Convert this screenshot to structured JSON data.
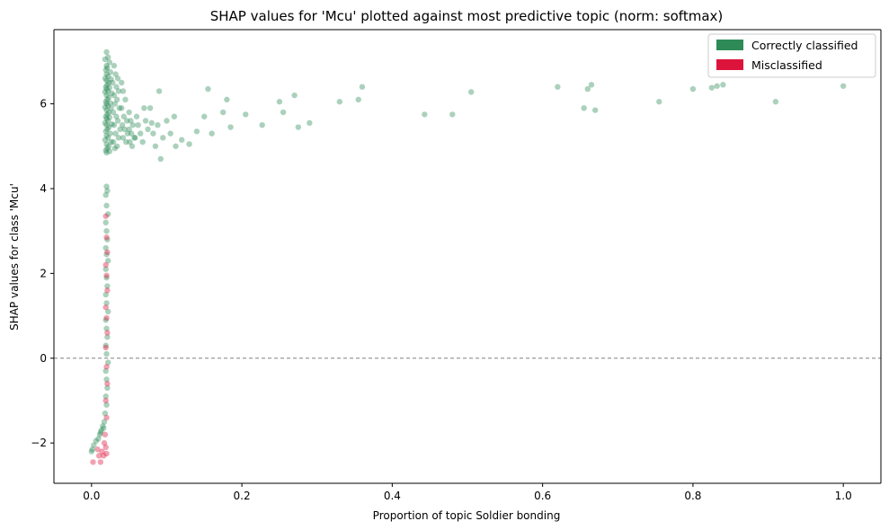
{
  "chart_data": {
    "type": "scatter",
    "title": "SHAP values for 'Mcu' plotted against most predictive topic (norm: softmax)",
    "xlabel": "Proportion of topic Soldier bonding",
    "ylabel": "SHAP values for class 'Mcu'",
    "xlim": [
      -0.05,
      1.05
    ],
    "ylim": [
      -2.95,
      7.75
    ],
    "xticks": [
      0.0,
      0.2,
      0.4,
      0.6,
      0.8,
      1.0
    ],
    "xtick_labels": [
      "0.0",
      "0.2",
      "0.4",
      "0.6",
      "0.8",
      "1.0"
    ],
    "yticks": [
      -2,
      0,
      2,
      4,
      6
    ],
    "ytick_labels": [
      "−2",
      "0",
      "2",
      "4",
      "6"
    ],
    "reference_line": {
      "y": 0,
      "style": "dashed",
      "color": "#808080"
    },
    "grid": false,
    "legend": {
      "position": "top-right"
    },
    "series": [
      {
        "name": "Correctly classified",
        "color": "#2e8b57",
        "points": [
          [
            0.02,
            7.22
          ],
          [
            0.022,
            7.1
          ],
          [
            0.018,
            7.05
          ],
          [
            0.024,
            6.98
          ],
          [
            0.02,
            6.9
          ],
          [
            0.021,
            6.85
          ],
          [
            0.019,
            6.8
          ],
          [
            0.025,
            6.75
          ],
          [
            0.02,
            6.7
          ],
          [
            0.022,
            6.65
          ],
          [
            0.018,
            6.6
          ],
          [
            0.026,
            6.58
          ],
          [
            0.02,
            6.55
          ],
          [
            0.023,
            6.5
          ],
          [
            0.021,
            6.45
          ],
          [
            0.019,
            6.4
          ],
          [
            0.024,
            6.38
          ],
          [
            0.02,
            6.35
          ],
          [
            0.022,
            6.3
          ],
          [
            0.018,
            6.28
          ],
          [
            0.027,
            6.25
          ],
          [
            0.02,
            6.2
          ],
          [
            0.023,
            6.15
          ],
          [
            0.021,
            6.1
          ],
          [
            0.019,
            6.05
          ],
          [
            0.025,
            6.02
          ],
          [
            0.02,
            6.0
          ],
          [
            0.022,
            5.95
          ],
          [
            0.018,
            5.92
          ],
          [
            0.026,
            5.9
          ],
          [
            0.02,
            5.85
          ],
          [
            0.023,
            5.8
          ],
          [
            0.021,
            5.75
          ],
          [
            0.019,
            5.7
          ],
          [
            0.024,
            5.68
          ],
          [
            0.02,
            5.65
          ],
          [
            0.022,
            5.6
          ],
          [
            0.018,
            5.55
          ],
          [
            0.027,
            5.52
          ],
          [
            0.02,
            5.5
          ],
          [
            0.023,
            5.45
          ],
          [
            0.021,
            5.4
          ],
          [
            0.019,
            5.35
          ],
          [
            0.025,
            5.3
          ],
          [
            0.02,
            5.25
          ],
          [
            0.022,
            5.2
          ],
          [
            0.018,
            5.15
          ],
          [
            0.026,
            5.1
          ],
          [
            0.02,
            5.05
          ],
          [
            0.023,
            5.0
          ],
          [
            0.021,
            4.95
          ],
          [
            0.019,
            4.9
          ],
          [
            0.024,
            4.88
          ],
          [
            0.02,
            4.85
          ],
          [
            0.03,
            6.9
          ],
          [
            0.032,
            6.7
          ],
          [
            0.035,
            6.6
          ],
          [
            0.028,
            6.5
          ],
          [
            0.033,
            6.4
          ],
          [
            0.036,
            6.3
          ],
          [
            0.03,
            6.2
          ],
          [
            0.034,
            6.1
          ],
          [
            0.031,
            6.0
          ],
          [
            0.037,
            5.9
          ],
          [
            0.029,
            5.8
          ],
          [
            0.033,
            5.7
          ],
          [
            0.035,
            5.6
          ],
          [
            0.03,
            5.5
          ],
          [
            0.038,
            5.4
          ],
          [
            0.032,
            5.3
          ],
          [
            0.036,
            5.2
          ],
          [
            0.029,
            5.1
          ],
          [
            0.034,
            5.0
          ],
          [
            0.031,
            4.95
          ],
          [
            0.04,
            6.5
          ],
          [
            0.042,
            6.3
          ],
          [
            0.045,
            6.1
          ],
          [
            0.04,
            5.9
          ],
          [
            0.043,
            5.7
          ],
          [
            0.047,
            5.6
          ],
          [
            0.041,
            5.5
          ],
          [
            0.044,
            5.4
          ],
          [
            0.048,
            5.3
          ],
          [
            0.042,
            5.2
          ],
          [
            0.046,
            5.1
          ],
          [
            0.05,
            5.8
          ],
          [
            0.052,
            5.6
          ],
          [
            0.055,
            5.5
          ],
          [
            0.05,
            5.4
          ],
          [
            0.053,
            5.3
          ],
          [
            0.057,
            5.2
          ],
          [
            0.051,
            5.1
          ],
          [
            0.054,
            5.0
          ],
          [
            0.06,
            5.7
          ],
          [
            0.062,
            5.5
          ],
          [
            0.065,
            5.3
          ],
          [
            0.058,
            5.2
          ],
          [
            0.07,
            5.9
          ],
          [
            0.072,
            5.6
          ],
          [
            0.075,
            5.4
          ],
          [
            0.068,
            5.1
          ],
          [
            0.08,
            5.55
          ],
          [
            0.082,
            5.3
          ],
          [
            0.085,
            5.0
          ],
          [
            0.078,
            5.9
          ],
          [
            0.09,
            6.3
          ],
          [
            0.088,
            5.5
          ],
          [
            0.092,
            4.7
          ],
          [
            0.095,
            5.2
          ],
          [
            0.1,
            5.6
          ],
          [
            0.105,
            5.3
          ],
          [
            0.11,
            5.7
          ],
          [
            0.112,
            5.0
          ],
          [
            0.12,
            5.15
          ],
          [
            0.13,
            5.05
          ],
          [
            0.14,
            5.35
          ],
          [
            0.15,
            5.7
          ],
          [
            0.155,
            6.35
          ],
          [
            0.16,
            5.3
          ],
          [
            0.175,
            5.8
          ],
          [
            0.18,
            6.1
          ],
          [
            0.185,
            5.45
          ],
          [
            0.205,
            5.75
          ],
          [
            0.227,
            5.5
          ],
          [
            0.25,
            6.05
          ],
          [
            0.255,
            5.8
          ],
          [
            0.27,
            6.2
          ],
          [
            0.275,
            5.45
          ],
          [
            0.29,
            5.55
          ],
          [
            0.33,
            6.05
          ],
          [
            0.355,
            6.1
          ],
          [
            0.36,
            6.4
          ],
          [
            0.443,
            5.75
          ],
          [
            0.48,
            5.75
          ],
          [
            0.505,
            6.28
          ],
          [
            0.62,
            6.4
          ],
          [
            0.655,
            5.9
          ],
          [
            0.66,
            6.35
          ],
          [
            0.665,
            6.45
          ],
          [
            0.67,
            5.85
          ],
          [
            0.755,
            6.05
          ],
          [
            0.8,
            6.35
          ],
          [
            0.825,
            6.38
          ],
          [
            0.832,
            6.42
          ],
          [
            0.84,
            6.45
          ],
          [
            0.91,
            6.05
          ],
          [
            1.0,
            6.42
          ],
          [
            0.02,
            4.05
          ],
          [
            0.021,
            3.95
          ],
          [
            0.019,
            3.85
          ],
          [
            0.02,
            3.6
          ],
          [
            0.022,
            3.4
          ],
          [
            0.019,
            3.2
          ],
          [
            0.02,
            3.0
          ],
          [
            0.021,
            2.8
          ],
          [
            0.019,
            2.6
          ],
          [
            0.02,
            2.45
          ],
          [
            0.022,
            2.3
          ],
          [
            0.019,
            2.1
          ],
          [
            0.02,
            1.9
          ],
          [
            0.021,
            1.7
          ],
          [
            0.019,
            1.5
          ],
          [
            0.02,
            1.3
          ],
          [
            0.022,
            1.1
          ],
          [
            0.019,
            0.9
          ],
          [
            0.02,
            0.7
          ],
          [
            0.021,
            0.5
          ],
          [
            0.019,
            0.3
          ],
          [
            0.02,
            0.1
          ],
          [
            0.022,
            -0.1
          ],
          [
            0.019,
            -0.3
          ],
          [
            0.02,
            -0.5
          ],
          [
            0.021,
            -0.7
          ],
          [
            0.019,
            -0.9
          ],
          [
            0.02,
            -1.1
          ],
          [
            0.018,
            -1.3
          ],
          [
            0.017,
            -1.5
          ],
          [
            0.015,
            -1.6
          ],
          [
            0.013,
            -1.7
          ],
          [
            0.011,
            -1.8
          ],
          [
            0.009,
            -1.9
          ],
          [
            0.006,
            -1.95
          ],
          [
            0.003,
            -2.05
          ],
          [
            0.001,
            -2.15
          ],
          [
            0.0,
            -2.2
          ],
          [
            0.012,
            -1.75
          ],
          [
            0.016,
            -1.65
          ]
        ]
      },
      {
        "name": "Misclassified",
        "color": "#dc143c",
        "points": [
          [
            0.019,
            3.35
          ],
          [
            0.02,
            2.85
          ],
          [
            0.021,
            2.5
          ],
          [
            0.019,
            2.2
          ],
          [
            0.02,
            1.95
          ],
          [
            0.021,
            1.6
          ],
          [
            0.019,
            1.2
          ],
          [
            0.02,
            0.95
          ],
          [
            0.021,
            0.6
          ],
          [
            0.019,
            0.25
          ],
          [
            0.02,
            -0.2
          ],
          [
            0.021,
            -0.6
          ],
          [
            0.019,
            -1.0
          ],
          [
            0.02,
            -1.4
          ],
          [
            0.018,
            -1.8
          ],
          [
            0.017,
            -2.0
          ],
          [
            0.019,
            -2.1
          ],
          [
            0.02,
            -2.25
          ],
          [
            0.016,
            -2.3
          ],
          [
            0.014,
            -2.2
          ],
          [
            0.012,
            -2.45
          ],
          [
            0.002,
            -2.45
          ],
          [
            0.01,
            -2.3
          ],
          [
            0.008,
            -2.15
          ]
        ]
      }
    ]
  }
}
